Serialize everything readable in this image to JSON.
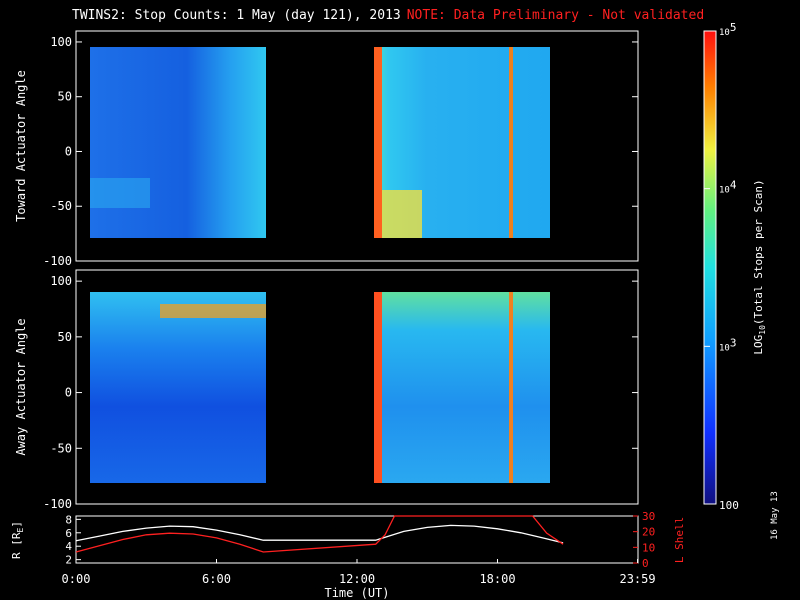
{
  "title": "TWINS2: Stop Counts:  1 May (day 121), 2013",
  "note": "NOTE: Data Preliminary - Not validated",
  "date_stamp": "16 May 13",
  "colors": {
    "background": "#000000",
    "note": "#ff2020",
    "r_trace": "#ffffff",
    "lshell_trace": "#ff2020"
  },
  "chart_data": [
    {
      "type": "heatmap",
      "ylabel": "Toward Actuator Angle",
      "ylim": [
        -100,
        110
      ],
      "yticks": [
        -100,
        -50,
        0,
        50,
        100
      ],
      "xlim": [
        0,
        24
      ],
      "data_intervals_hours": [
        [
          0,
          8
        ],
        [
          12.8,
          20.8
        ]
      ],
      "angle_range": [
        -88,
        90
      ]
    },
    {
      "type": "heatmap",
      "ylabel": "Away Actuator Angle",
      "ylim": [
        -100,
        110
      ],
      "yticks": [
        -100,
        -50,
        0,
        50,
        100
      ],
      "xlim": [
        0,
        24
      ],
      "data_intervals_hours": [
        [
          0,
          8
        ],
        [
          12.8,
          20.8
        ]
      ],
      "angle_range": [
        -88,
        90
      ]
    },
    {
      "type": "line",
      "xlabel": "Time (UT)",
      "xlim": [
        0,
        24
      ],
      "xticks": [
        "0:00",
        "6:00",
        "12:00",
        "18:00",
        "23:59"
      ],
      "xtick_hours": [
        0,
        6,
        12,
        18,
        23.98
      ],
      "ylabel_left": "R [R",
      "ylabel_left_sub": "E",
      "ylabel_left_close": "]",
      "ylim_left": [
        1.5,
        8.5
      ],
      "yticks_left": [
        2,
        4,
        6,
        8
      ],
      "ylabel_right": "L Shell",
      "ylim_right": [
        0,
        30
      ],
      "yticks_right": [
        0,
        10,
        20,
        30
      ],
      "series": [
        {
          "axis": "left",
          "x": [
            0,
            1,
            2,
            3,
            4,
            5,
            6,
            7,
            8,
            12.8,
            14,
            15,
            16,
            17,
            18,
            19,
            20,
            20.8
          ],
          "y": [
            4.8,
            5.5,
            6.2,
            6.7,
            7.0,
            6.9,
            6.4,
            5.7,
            4.9,
            4.9,
            6.2,
            6.8,
            7.1,
            7.0,
            6.6,
            6.0,
            5.2,
            4.5
          ]
        },
        {
          "axis": "right",
          "x": [
            0,
            1,
            2,
            3,
            4,
            5,
            6,
            7,
            8,
            12.8,
            13.2,
            13.6,
            19.5,
            20.1,
            20.8
          ],
          "y": [
            7,
            11,
            15,
            18,
            19,
            18.5,
            16,
            12,
            7,
            12,
            18,
            30,
            30,
            19,
            12
          ]
        }
      ]
    },
    {
      "type": "heatmap",
      "colorbar": true,
      "label": "LOG",
      "label_sub": "10",
      "label_rest": "(Total Stops per Scan)",
      "scale": "log",
      "range": [
        100,
        100000
      ],
      "tick_major": [
        "10",
        "10",
        "10"
      ],
      "tick_sup": [
        "5",
        "4",
        "3"
      ],
      "tick_values": [
        100000,
        10000,
        1000,
        100
      ],
      "tick_bottom": "100"
    }
  ]
}
